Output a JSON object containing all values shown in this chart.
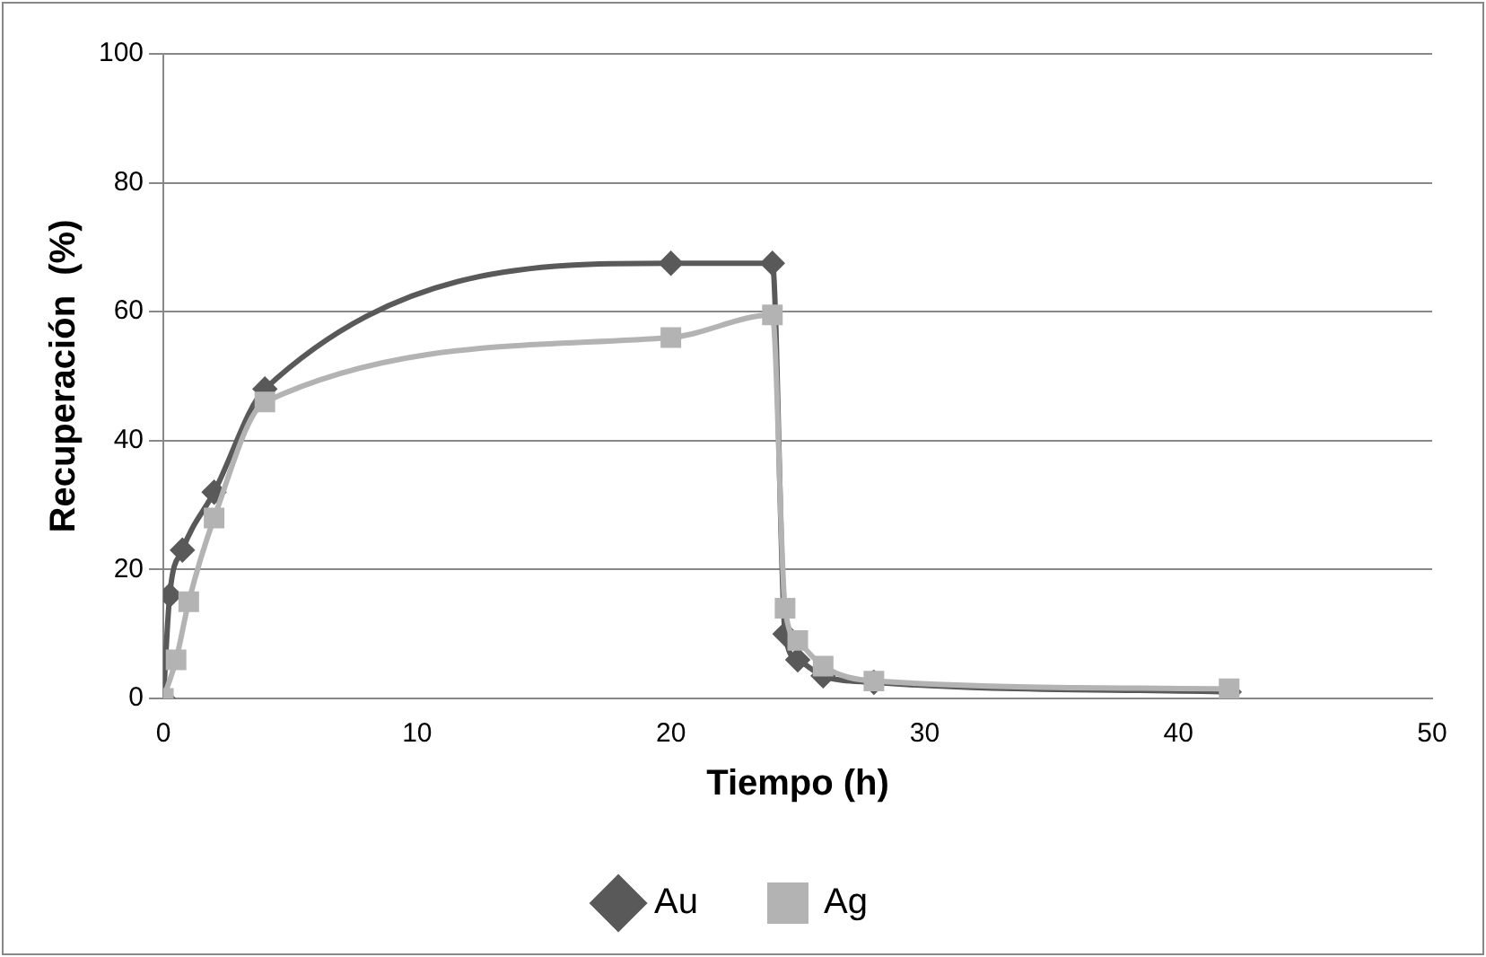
{
  "chart_data": {
    "type": "line",
    "xlabel": "Tiempo (h)",
    "ylabel": "Recuperación  (%)",
    "xlim": [
      0,
      50
    ],
    "xticks": [
      0,
      10,
      20,
      30,
      40,
      50
    ],
    "ylim": [
      0,
      100
    ],
    "yticks": [
      0,
      20,
      40,
      60,
      80,
      100
    ],
    "grid": "y",
    "legend": "bottom",
    "series": [
      {
        "name": "Au",
        "color": "#595959",
        "marker": "diamond",
        "x": [
          0,
          0.25,
          0.75,
          2,
          4,
          20,
          24,
          24.5,
          25,
          26,
          28,
          42
        ],
        "values": [
          0,
          16,
          23,
          32,
          48,
          67.5,
          67.5,
          10,
          6,
          3.5,
          2.5,
          1
        ]
      },
      {
        "name": "Ag",
        "color": "#b3b3b3",
        "marker": "square",
        "x": [
          0,
          0.5,
          1,
          2,
          4,
          20,
          24,
          24.5,
          25,
          26,
          28,
          42
        ],
        "values": [
          0,
          6,
          15,
          28,
          46,
          56,
          59.5,
          14,
          9,
          5,
          2.7,
          1.5
        ]
      }
    ]
  }
}
